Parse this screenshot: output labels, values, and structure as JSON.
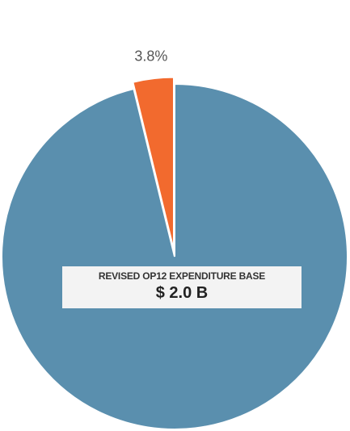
{
  "chart_data": {
    "type": "pie",
    "slices": [
      {
        "label": "",
        "value": 96.2,
        "color": "#5a8fae"
      },
      {
        "label": "3.8%",
        "value": 3.8,
        "color": "#f26a2e",
        "exploded": true
      }
    ],
    "center_label": {
      "title": "REVISED OP12 EXPENDITURE BASE",
      "value": "$ 2.0 B"
    },
    "legend": "none"
  }
}
